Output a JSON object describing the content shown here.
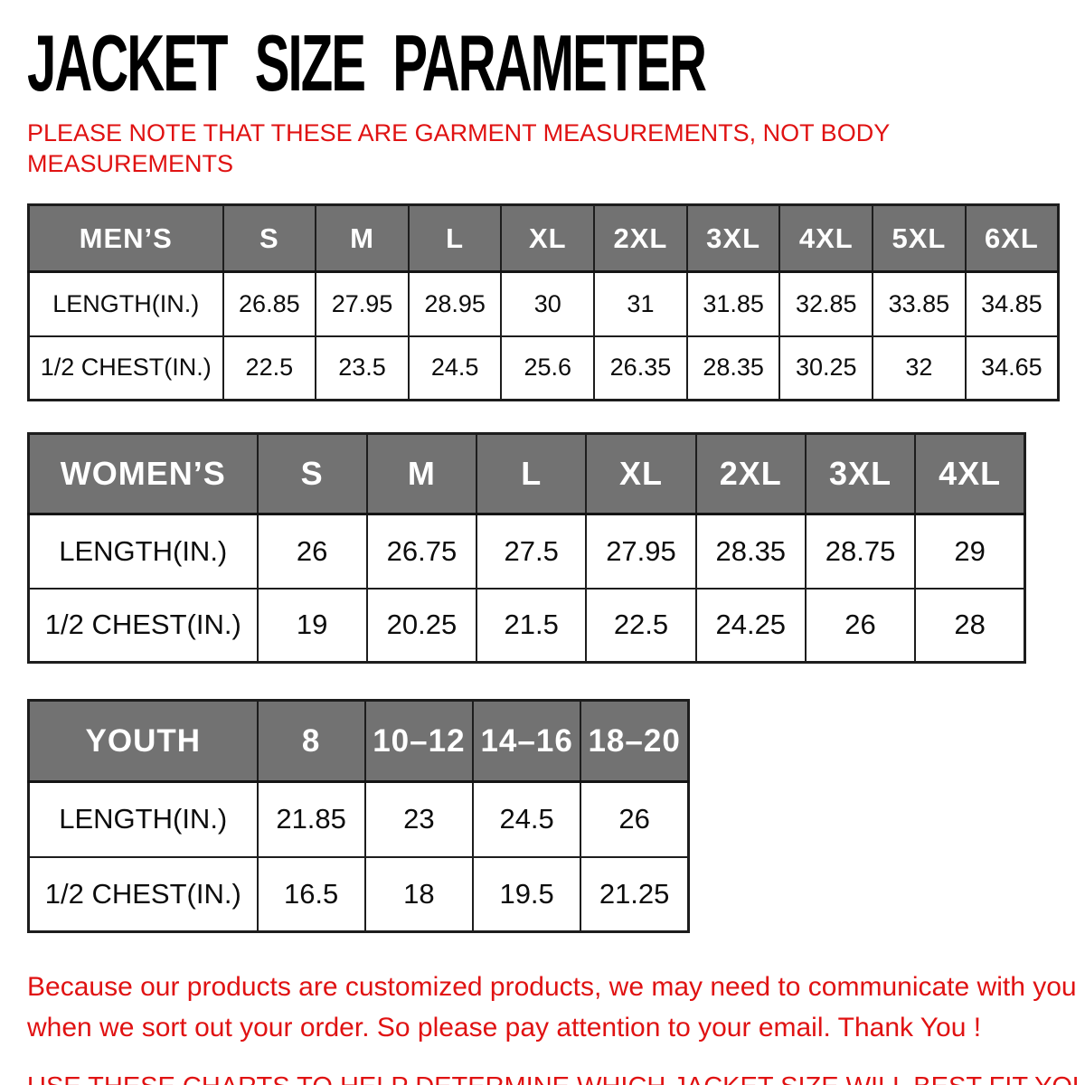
{
  "header": {
    "title": "JACKET SIZE PARAMETER",
    "note_lines": [
      "PLEASE NOTE THAT THESE ARE GARMENT MEASUREMENTS, NOT BODY",
      "MEASUREMENTS"
    ]
  },
  "colors": {
    "accent_red": "#e01212",
    "header_gray": "#727272",
    "border_black": "#1d1d1d"
  },
  "tables": [
    {
      "id": "mens",
      "header": [
        "MEN’S",
        "S",
        "M",
        "L",
        "XL",
        "2XL",
        "3XL",
        "4XL",
        "5XL",
        "6XL"
      ],
      "rows": [
        {
          "label": "LENGTH(IN.)",
          "values": [
            "26.85",
            "27.95",
            "28.95",
            "30",
            "31",
            "31.85",
            "32.85",
            "33.85",
            "34.85"
          ]
        },
        {
          "label": "1/2 CHEST(IN.)",
          "values": [
            "22.5",
            "23.5",
            "24.5",
            "25.6",
            "26.35",
            "28.35",
            "30.25",
            "32",
            "34.65"
          ]
        }
      ]
    },
    {
      "id": "womens",
      "header": [
        "WOMEN’S",
        "S",
        "M",
        "L",
        "XL",
        "2XL",
        "3XL",
        "4XL"
      ],
      "rows": [
        {
          "label": "LENGTH(IN.)",
          "values": [
            "26",
            "26.75",
            "27.5",
            "27.95",
            "28.35",
            "28.75",
            "29"
          ]
        },
        {
          "label": "1/2 CHEST(IN.)",
          "values": [
            "19",
            "20.25",
            "21.5",
            "22.5",
            "24.25",
            "26",
            "28"
          ]
        }
      ]
    },
    {
      "id": "youth",
      "header": [
        "YOUTH",
        "8",
        "10–12",
        "14–16",
        "18–20"
      ],
      "rows": [
        {
          "label": "LENGTH(IN.)",
          "values": [
            "21.85",
            "23",
            "24.5",
            "26"
          ]
        },
        {
          "label": "1/2 CHEST(IN.)",
          "values": [
            "16.5",
            "18",
            "19.5",
            "21.25"
          ]
        }
      ]
    }
  ],
  "footer": {
    "para_lines": [
      "Because our products are customized products, we may need to communicate with you",
      "when we sort out your order. So please pay attention to your email. Thank You !"
    ],
    "caps_line": "USE THESE CHARTS TO HELP DETERMINE WHICH JACKET SIZE WILL BEST FIT YOU."
  }
}
